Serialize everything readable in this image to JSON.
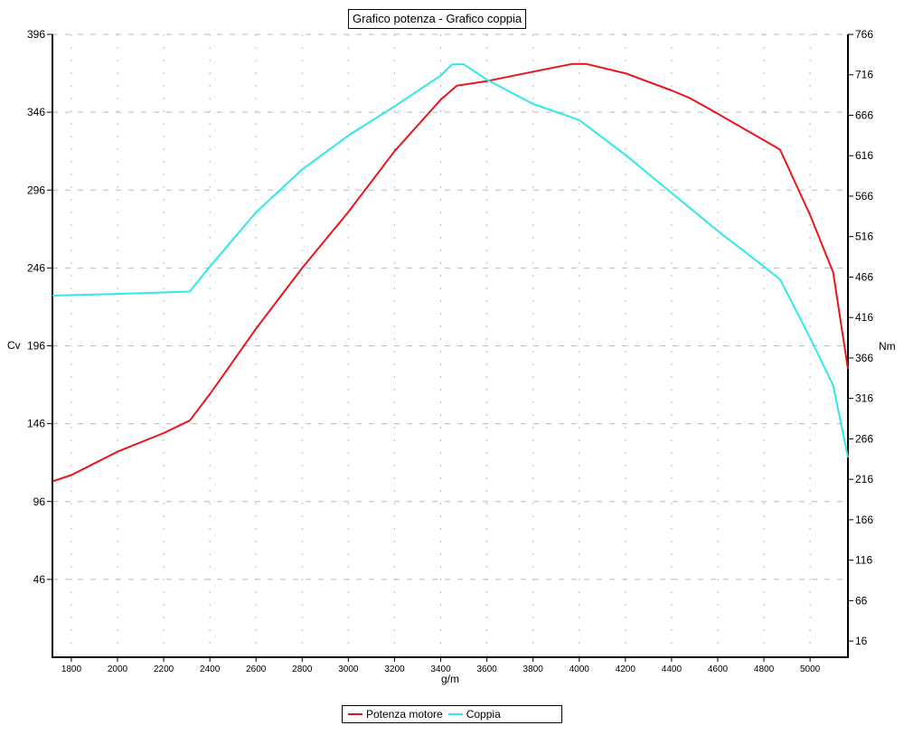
{
  "chart_data": {
    "type": "line",
    "title": "Grafico potenza - Grafico coppia",
    "xlabel": "g/m",
    "ylabel": "Cv",
    "ylabel_right": "Nm",
    "xlim": [
      1718,
      5164
    ],
    "ylim": [
      -4,
      396
    ],
    "ylim_right": [
      -4,
      766
    ],
    "x_ticks": [
      1800,
      2000,
      2200,
      2400,
      2600,
      2800,
      3000,
      3200,
      3400,
      3600,
      3800,
      4000,
      4200,
      4400,
      4600,
      4800,
      5000
    ],
    "y_ticks_left": [
      46,
      96,
      146,
      196,
      246,
      296,
      346,
      396
    ],
    "y_ticks_right": [
      16,
      66,
      116,
      166,
      216,
      266,
      316,
      366,
      416,
      466,
      516,
      566,
      616,
      666,
      716,
      766
    ],
    "grid": true,
    "legend_position": "bottom",
    "series": [
      {
        "name": "Potenza motore",
        "axis": "left",
        "color": "#e8141b",
        "x": [
          1718,
          1800,
          2000,
          2200,
          2313,
          2400,
          2600,
          2800,
          3000,
          3200,
          3400,
          3470,
          3600,
          3800,
          3970,
          4030,
          4200,
          4400,
          4480,
          4600,
          4800,
          4870,
          5000,
          5100,
          5164
        ],
        "values": [
          109,
          113,
          128,
          140,
          148,
          165,
          207,
          246,
          282,
          321,
          354,
          363,
          366,
          372,
          377,
          377,
          371,
          360,
          355,
          345,
          328,
          322,
          280,
          243,
          181
        ]
      },
      {
        "name": "Coppia",
        "axis": "right",
        "color": "#2ee8ea",
        "x": [
          1718,
          2100,
          2313,
          2400,
          2600,
          2800,
          3000,
          3200,
          3400,
          3450,
          3500,
          3600,
          3800,
          4000,
          4200,
          4400,
          4600,
          4800,
          4870,
          5000,
          5100,
          5164
        ],
        "values": [
          443,
          446,
          448,
          479,
          546,
          599,
          641,
          677,
          715,
          729,
          729,
          710,
          680,
          660,
          617,
          570,
          523,
          479,
          463,
          391,
          332,
          243
        ]
      }
    ]
  },
  "legend": {
    "items": [
      {
        "label": "Potenza motore",
        "color": "#e8141b"
      },
      {
        "label": "Coppia",
        "color": "#2ee8ea"
      }
    ]
  }
}
